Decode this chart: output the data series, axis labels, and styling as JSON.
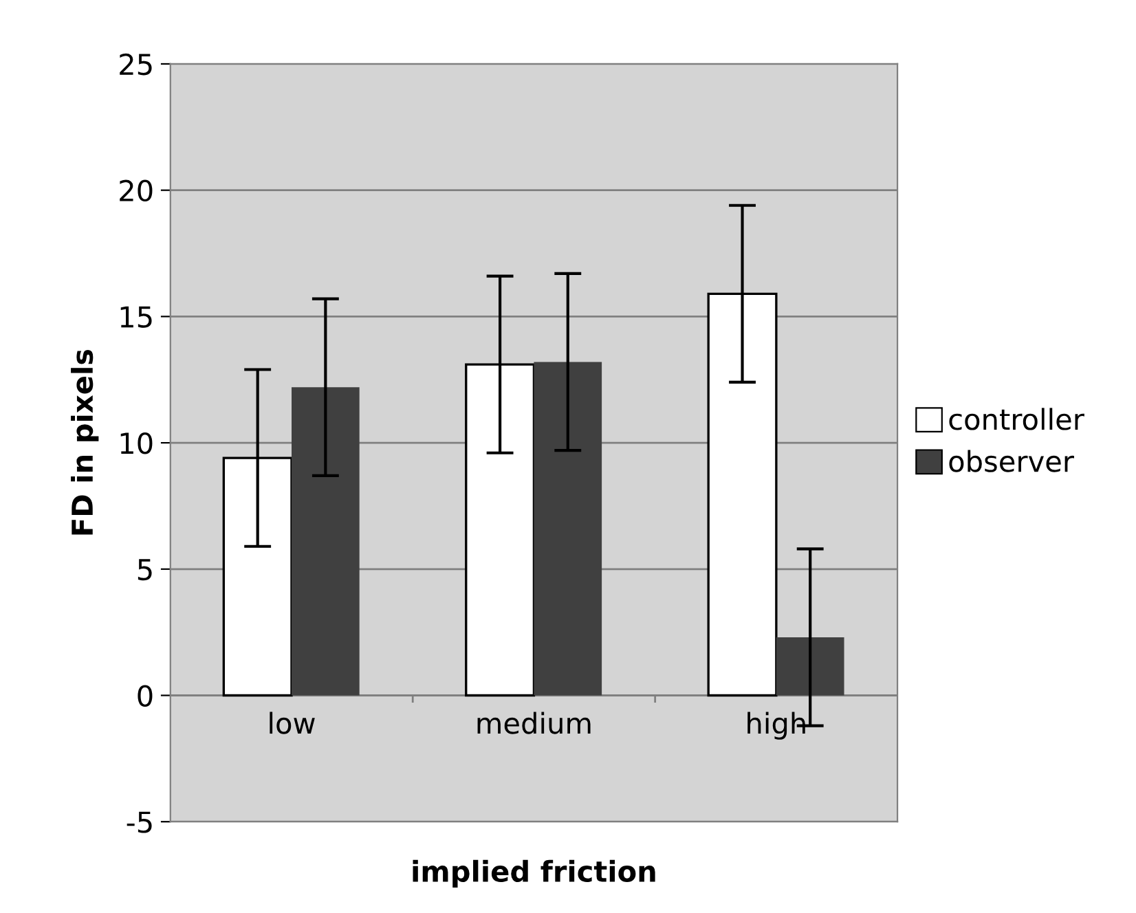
{
  "chart_data": {
    "type": "bar",
    "xlabel": "implied friction",
    "ylabel": "FD in pixels",
    "categories": [
      "low",
      "medium",
      "high"
    ],
    "series": [
      {
        "name": "controller",
        "color": "#ffffff",
        "values": [
          9.4,
          13.1,
          15.9
        ],
        "errors": [
          3.5,
          3.5,
          3.5
        ]
      },
      {
        "name": "observer",
        "color": "#404040",
        "values": [
          12.2,
          13.2,
          2.3
        ],
        "errors": [
          3.5,
          3.5,
          3.5
        ]
      }
    ],
    "ylim": [
      -5,
      25
    ],
    "yticks": [
      -5,
      0,
      5,
      10,
      15,
      20,
      25
    ],
    "grid": "y",
    "legend": "right"
  }
}
